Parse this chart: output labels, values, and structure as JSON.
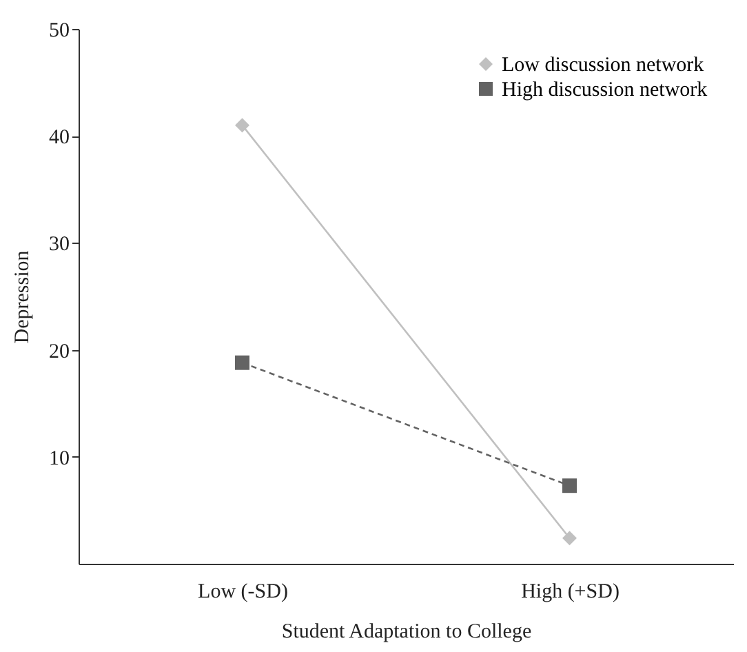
{
  "chart_data": {
    "type": "line",
    "xlabel": "Student Adaptation to College",
    "ylabel": "Depression",
    "categories": [
      "Low (-SD)",
      "High (+SD)"
    ],
    "series": [
      {
        "name": "Low discussion network",
        "color": "#c0c0c0",
        "values": [
          41,
          2.4
        ],
        "marker": "diamond",
        "line_style": "solid"
      },
      {
        "name": "High discussion network",
        "color": "#636363",
        "values": [
          18.8,
          7.3
        ],
        "marker": "square",
        "line_style": "dashed"
      }
    ],
    "ylim": [
      0,
      50
    ],
    "yticks": [
      10,
      20,
      30,
      40,
      50
    ],
    "grid": false,
    "legend": "top right"
  }
}
